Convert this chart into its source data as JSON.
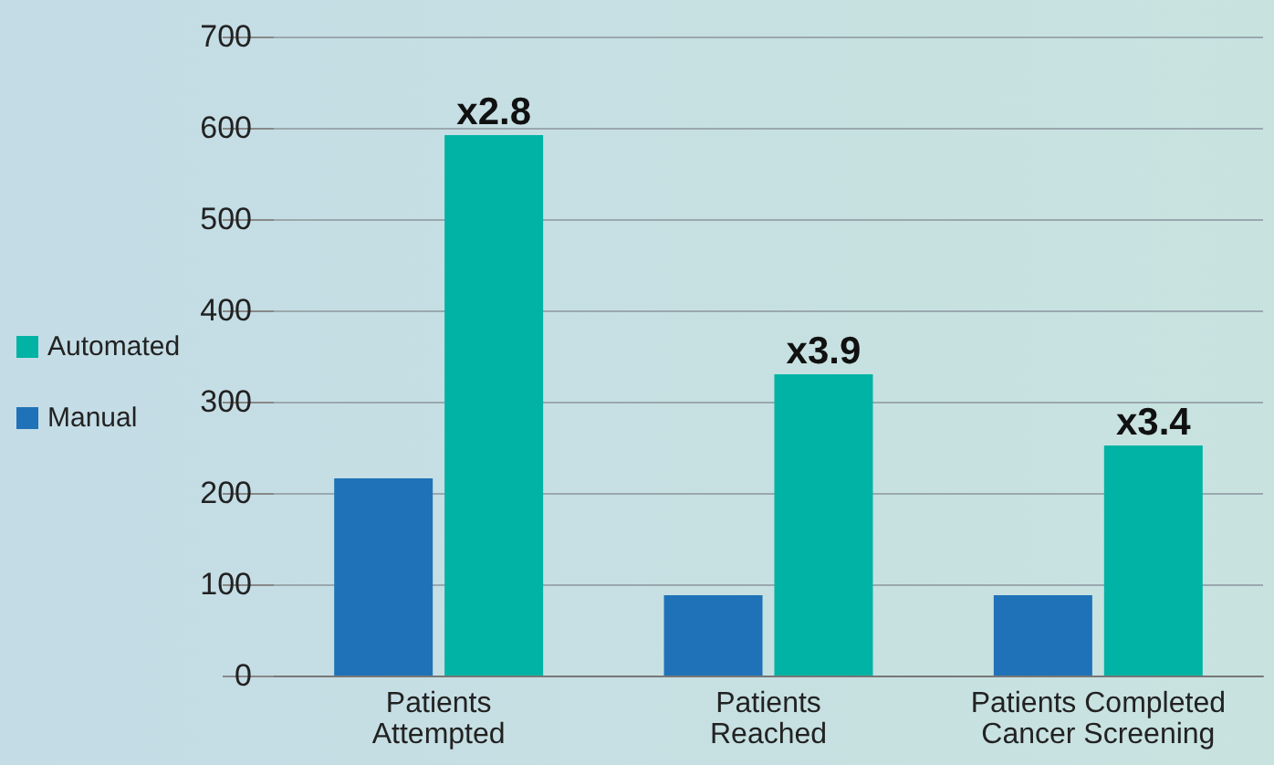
{
  "chart_data": {
    "type": "bar",
    "categories": [
      "Patients\nAttempted",
      "Patients\nReached",
      "Patients Completed\nCancer Screening"
    ],
    "series": [
      {
        "name": "Manual",
        "color": "#1f72b8",
        "values": [
          216,
          88,
          88
        ]
      },
      {
        "name": "Automated",
        "color": "#00b3a4",
        "values": [
          592,
          330,
          252
        ]
      }
    ],
    "ylim": [
      0,
      700
    ],
    "yticks": [
      0,
      100,
      200,
      300,
      400,
      500,
      600,
      700
    ],
    "grid": "y",
    "legend": "left",
    "annotations": [
      {
        "text": "x2.8",
        "x": "Patients\nAttempted",
        "y": 592
      },
      {
        "text": "x3.9",
        "x": "Patients\nReached",
        "y": 330
      },
      {
        "text": "x3.4",
        "x": "Patients Completed\nCancer Screening",
        "y": 252
      }
    ]
  }
}
